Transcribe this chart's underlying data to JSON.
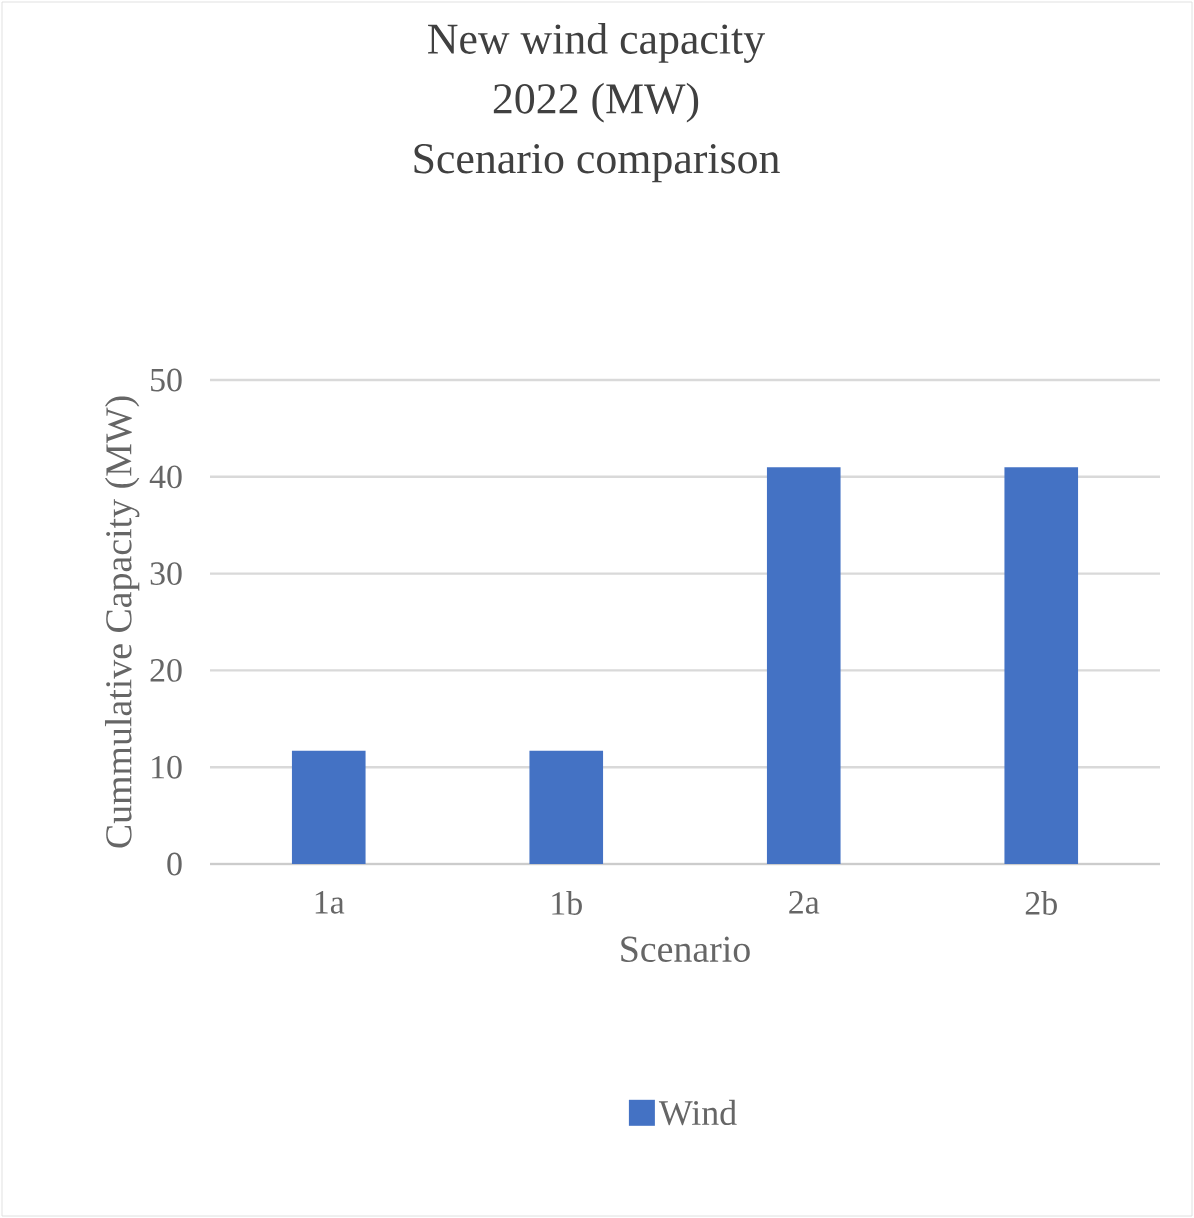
{
  "chart_data": {
    "type": "bar",
    "title": "New wind capacity\n2022 (MW)\nScenario comparison",
    "xlabel": "Scenario",
    "ylabel": "Cummulative Capacity (MW)",
    "categories": [
      "1a",
      "1b",
      "2a",
      "2b"
    ],
    "series": [
      {
        "name": "Wind",
        "color": "#4472c4",
        "values": [
          11.7,
          11.7,
          41,
          41
        ]
      }
    ],
    "ylim": [
      0,
      50
    ],
    "yticks": [
      0,
      10,
      20,
      30,
      40,
      50
    ],
    "grid": "y",
    "legend": "bottom"
  }
}
